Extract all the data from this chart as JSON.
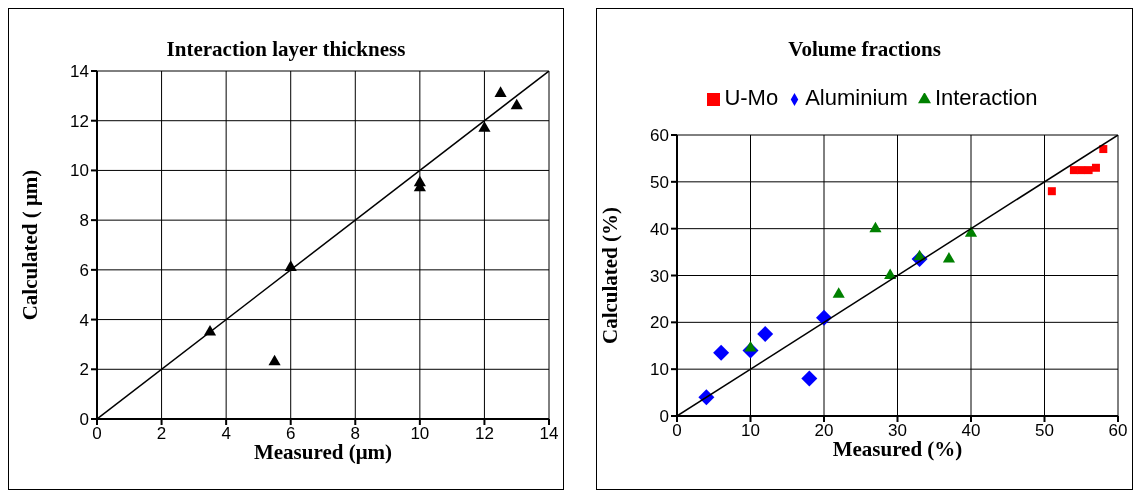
{
  "chart_data": [
    {
      "type": "scatter",
      "title": "Interaction layer thickness",
      "xlabel": "Measured (μm)",
      "ylabel": "Calculated ( μm)",
      "xlim": [
        0,
        14
      ],
      "ylim": [
        0,
        14
      ],
      "xticks": [
        0,
        2,
        4,
        6,
        8,
        10,
        12,
        14
      ],
      "yticks": [
        0,
        2,
        4,
        6,
        8,
        10,
        12,
        14
      ],
      "grid": true,
      "legend": false,
      "series": [
        {
          "marker": "triangle",
          "color": "#000000",
          "x": [
            3.5,
            5.5,
            6,
            10,
            10,
            12,
            12.5,
            13
          ],
          "values": [
            3.5,
            2.3,
            6.1,
            9.3,
            9.5,
            11.7,
            13.1,
            12.6
          ]
        },
        {
          "type": "line",
          "color": "#000000",
          "x": [
            0,
            14
          ],
          "values": [
            0,
            14
          ]
        }
      ]
    },
    {
      "type": "scatter",
      "title": "Volume fractions",
      "xlabel": "Measured (%)",
      "ylabel": "Calculated (%)",
      "xlim": [
        0,
        60
      ],
      "ylim": [
        0,
        60
      ],
      "xticks": [
        0,
        10,
        20,
        30,
        40,
        50,
        60
      ],
      "yticks": [
        0,
        10,
        20,
        30,
        40,
        50,
        60
      ],
      "grid": true,
      "legend": "top",
      "series": [
        {
          "name": "U-Mo",
          "marker": "square",
          "color": "#ff0000",
          "x": [
            51,
            54,
            55,
            56,
            57,
            58
          ],
          "values": [
            48,
            52.5,
            52.5,
            52.5,
            53,
            57
          ]
        },
        {
          "name": "Aluminium",
          "marker": "diamond",
          "color": "#0000ff",
          "x": [
            4,
            6,
            10,
            12,
            18,
            20,
            33
          ],
          "values": [
            4,
            13.5,
            14,
            17.5,
            8,
            21,
            33.5
          ]
        },
        {
          "name": "Interaction",
          "marker": "triangle",
          "color": "#008000",
          "x": [
            10,
            22,
            27,
            29,
            33,
            37,
            40
          ],
          "values": [
            14.5,
            26,
            40,
            30,
            34,
            33.5,
            39
          ]
        },
        {
          "type": "line",
          "color": "#000000",
          "x": [
            0,
            60
          ],
          "values": [
            0,
            60
          ]
        }
      ]
    }
  ]
}
